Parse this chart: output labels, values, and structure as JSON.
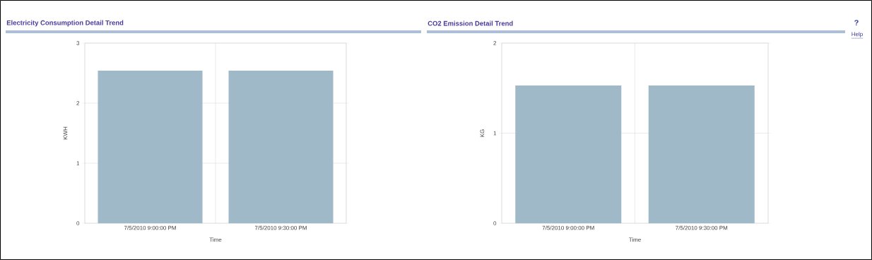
{
  "chart_data": [
    {
      "type": "bar",
      "title": "Electricity Consumption Detail Trend",
      "xlabel": "Time",
      "ylabel": "KWH",
      "categories": [
        "7/5/2010 9:00:00 PM",
        "7/5/2010 9:30:00 PM"
      ],
      "values": [
        2.54,
        2.54
      ],
      "color": "#9fb9c9",
      "ylim": [
        0,
        3
      ],
      "yticks": [
        0,
        1,
        2,
        3
      ],
      "grid": true
    },
    {
      "type": "bar",
      "title": "CO2 Emission Detail Trend",
      "xlabel": "Time",
      "ylabel": "KG",
      "categories": [
        "7/5/2010 9:00:00 PM",
        "7/5/2010 9:30:00 PM"
      ],
      "values": [
        1.53,
        1.53
      ],
      "color": "#9fb9c9",
      "ylim": [
        0,
        2
      ],
      "yticks": [
        0,
        1,
        2
      ],
      "grid": true,
      "annotations": [
        "?",
        "Help"
      ]
    }
  ]
}
